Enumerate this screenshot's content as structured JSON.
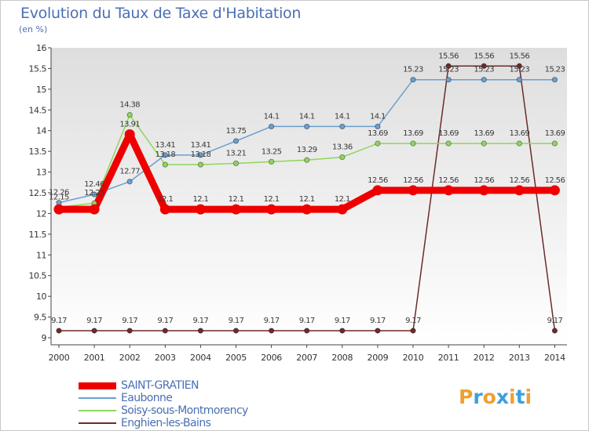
{
  "header": {
    "title": "Evolution du Taux de Taxe d'Habitation",
    "subtitle": "(en %)"
  },
  "logo": {
    "text": "Proxiti",
    "colors": [
      "#f0a030",
      "#3aa0dc",
      "#f0a030",
      "#3aa0dc",
      "#f0a030",
      "#3aa0dc",
      "#f0a030"
    ]
  },
  "chart_data": {
    "type": "line",
    "title": "Evolution du Taux de Taxe d'Habitation",
    "ylabel": "(en %)",
    "xlabel": "",
    "x": [
      "2000",
      "2001",
      "2002",
      "2003",
      "2004",
      "2005",
      "2006",
      "2007",
      "2008",
      "2009",
      "2010",
      "2011",
      "2012",
      "2013",
      "2014"
    ],
    "ylim": [
      9,
      16
    ],
    "yticks": [
      9,
      9.5,
      10,
      10.5,
      11,
      11.5,
      12,
      12.5,
      13,
      13.5,
      14,
      14.5,
      15,
      15.5,
      16
    ],
    "ytick_labels": [
      "9",
      "9.5",
      "10",
      "10.5",
      "11",
      "11.5",
      "12",
      "12.5",
      "13",
      "13.5",
      "14",
      "14.5",
      "15",
      "15.5",
      "16"
    ],
    "grid": false,
    "legend_position": "bottom-left",
    "series": [
      {
        "name": "SAINT-GRATIEN",
        "color": "#ee0000",
        "values": [
          12.1,
          12.1,
          13.91,
          12.1,
          12.1,
          12.1,
          12.1,
          12.1,
          12.1,
          12.56,
          12.56,
          12.56,
          12.56,
          12.56,
          12.56
        ],
        "labels": [
          "",
          "",
          "13.91",
          "12.1",
          "12.1",
          "12.1",
          "12.1",
          "12.1",
          "12.1",
          "12.56",
          "12.56",
          "12.56",
          "12.56",
          "12.56",
          "12.56"
        ]
      },
      {
        "name": "Eaubonne",
        "color": "#6a9fd1",
        "values": [
          12.26,
          12.46,
          12.77,
          13.41,
          13.41,
          13.75,
          14.1,
          14.1,
          14.1,
          14.1,
          15.23,
          15.23,
          15.23,
          15.23,
          15.23
        ],
        "labels": [
          "12.26",
          "12.46",
          "12.77",
          "13.41",
          "13.41",
          "13.75",
          "14.1",
          "14.1",
          "14.1",
          "14.1",
          "15.23",
          "15.23",
          "15.23",
          "15.23",
          "15.23"
        ]
      },
      {
        "name": "Soisy-sous-Montmorency",
        "color": "#8ed65a",
        "values": [
          12.15,
          12.25,
          14.38,
          13.18,
          13.18,
          13.21,
          13.25,
          13.29,
          13.36,
          13.69,
          13.69,
          13.69,
          13.69,
          13.69,
          13.69
        ],
        "labels": [
          "12.15",
          "12.25",
          "14.38",
          "13.18",
          "13.18",
          "13.21",
          "13.25",
          "13.29",
          "13.36",
          "13.69",
          "13.69",
          "13.69",
          "13.69",
          "13.69",
          "13.69"
        ]
      },
      {
        "name": "Enghien-les-Bains",
        "color": "#6e2a2a",
        "values": [
          9.17,
          9.17,
          9.17,
          9.17,
          9.17,
          9.17,
          9.17,
          9.17,
          9.17,
          9.17,
          9.17,
          15.56,
          15.56,
          15.56,
          9.17
        ],
        "labels": [
          "9.17",
          "9.17",
          "9.17",
          "9.17",
          "9.17",
          "9.17",
          "9.17",
          "9.17",
          "9.17",
          "9.17",
          "9.17",
          "15.56",
          "15.56",
          "15.56",
          "9.17"
        ]
      }
    ]
  }
}
